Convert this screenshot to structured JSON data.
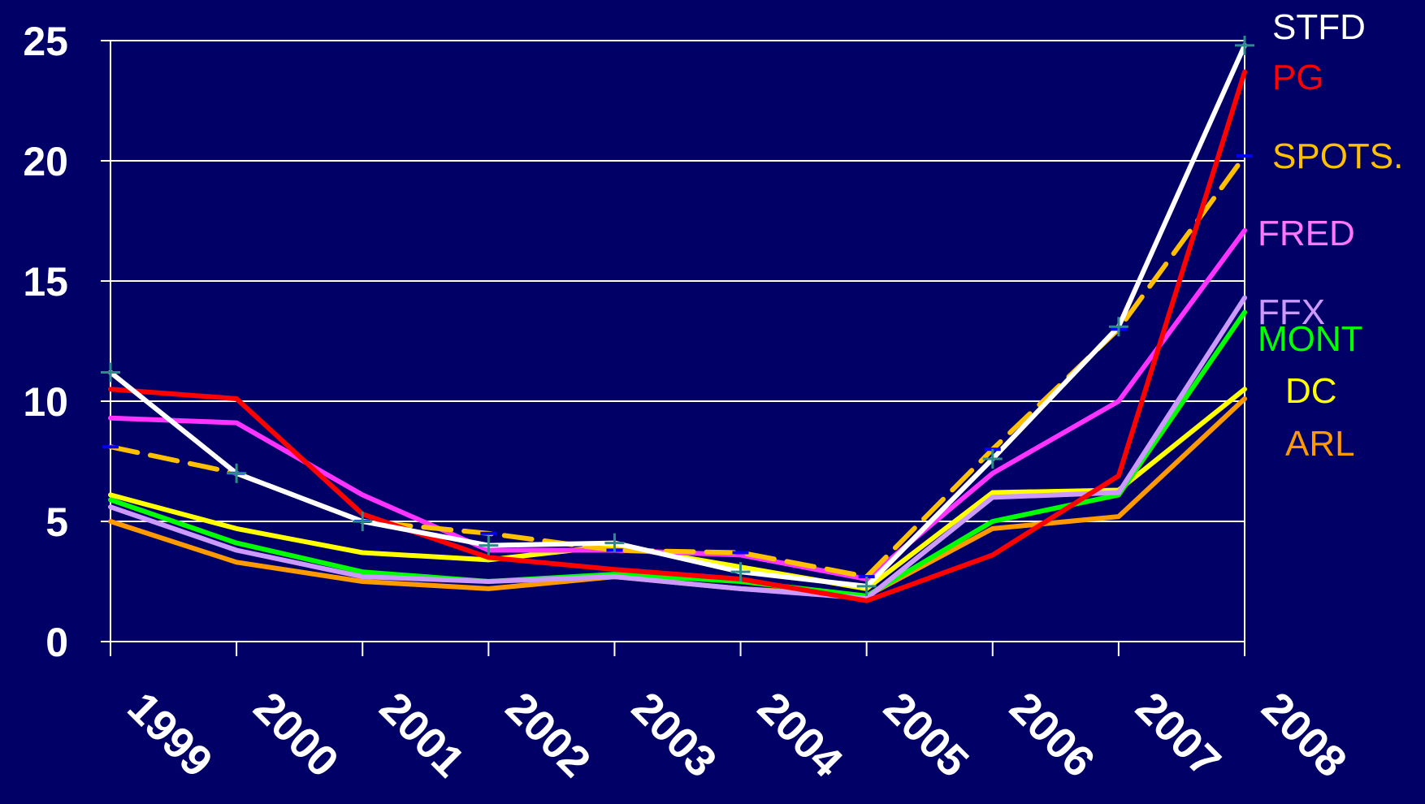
{
  "chart_data": {
    "type": "line",
    "categories": [
      "1999",
      "2000",
      "2001",
      "2002",
      "2003",
      "2004",
      "2005",
      "2006",
      "2007",
      "2008"
    ],
    "ylim": [
      0,
      25
    ],
    "yticks": [
      "0",
      "5",
      "10",
      "15",
      "20",
      "25"
    ],
    "grid": true,
    "legend_placement": "right, at line ends",
    "background_color": "#000066",
    "series": [
      {
        "name": "STFD",
        "color": "#ffffff",
        "dash": false,
        "marker": "plus",
        "values": [
          11.2,
          7.0,
          5.0,
          4.0,
          4.1,
          2.9,
          2.3,
          7.6,
          13.1,
          24.8
        ]
      },
      {
        "name": "PG",
        "color": "#ff0000",
        "dash": false,
        "marker": "none",
        "values": [
          10.5,
          10.1,
          5.3,
          3.5,
          3.0,
          2.6,
          1.7,
          3.6,
          6.9,
          23.7
        ]
      },
      {
        "name": "SPOTS.",
        "color": "#ffc000",
        "dash": true,
        "marker": "dash",
        "values": [
          8.1,
          7.0,
          5.0,
          4.5,
          3.8,
          3.7,
          2.7,
          8.0,
          13.0,
          20.2
        ]
      },
      {
        "name": "FRED",
        "color": "#ff33ff",
        "dash": false,
        "marker": "none",
        "values": [
          9.3,
          9.1,
          6.1,
          3.8,
          3.8,
          3.6,
          2.6,
          7.0,
          10.0,
          17.1
        ]
      },
      {
        "name": "FFX",
        "color": "#cc99ff",
        "dash": false,
        "marker": "none",
        "values": [
          5.6,
          3.8,
          2.7,
          2.5,
          2.7,
          2.2,
          1.8,
          6.0,
          6.2,
          14.3
        ]
      },
      {
        "name": "MONT",
        "color": "#00ff00",
        "dash": false,
        "marker": "none",
        "values": [
          5.9,
          4.1,
          2.9,
          2.5,
          2.8,
          2.5,
          1.9,
          5.0,
          6.1,
          13.7
        ]
      },
      {
        "name": "DC",
        "color": "#ffff00",
        "dash": false,
        "marker": "none",
        "values": [
          6.1,
          4.7,
          3.7,
          3.4,
          4.0,
          3.1,
          2.2,
          6.2,
          6.3,
          10.5
        ]
      },
      {
        "name": "ARL",
        "color": "#ff9900",
        "dash": false,
        "marker": "none",
        "values": [
          5.0,
          3.3,
          2.5,
          2.2,
          2.7,
          2.2,
          1.9,
          4.7,
          5.2,
          10.1
        ]
      }
    ]
  }
}
